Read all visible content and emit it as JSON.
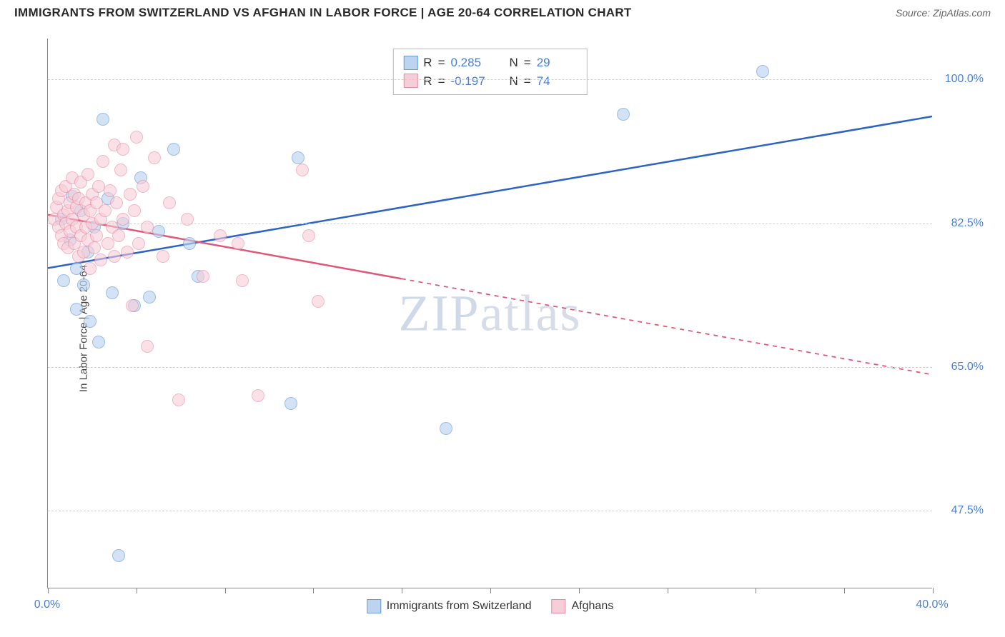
{
  "title": "IMMIGRANTS FROM SWITZERLAND VS AFGHAN IN LABOR FORCE | AGE 20-64 CORRELATION CHART",
  "source_prefix": "Source: ",
  "source_name": "ZipAtlas.com",
  "y_axis_title": "In Labor Force | Age 20-64",
  "watermark_a": "ZIP",
  "watermark_b": "atlas",
  "chart": {
    "type": "scatter-correlation",
    "background_color": "#ffffff",
    "grid_color": "#d0d0d0",
    "axis_color": "#888888",
    "xlim": [
      0,
      40
    ],
    "ylim": [
      38,
      105
    ],
    "x_ticks": [
      0,
      4,
      8,
      12,
      16,
      20,
      24,
      28,
      32,
      36,
      40
    ],
    "x_tick_labels": {
      "0": "0.0%",
      "40": "40.0%"
    },
    "y_gridlines": [
      47.5,
      65.0,
      82.5,
      100.0
    ],
    "y_tick_labels": [
      "47.5%",
      "65.0%",
      "82.5%",
      "100.0%"
    ],
    "point_radius": 9,
    "point_stroke_width": 1.4,
    "trend_line_width": 2.5
  },
  "series": [
    {
      "key": "swiss",
      "label": "Immigrants from Switzerland",
      "fill": "#bcd4ef",
      "stroke": "#6a9bd8",
      "fill_opacity": 0.65,
      "trend_color": "#2b63c9",
      "trend_dash_after_x": 40,
      "trend": {
        "x1": 0,
        "y1": 77.0,
        "x2": 40,
        "y2": 95.5
      },
      "R": "0.285",
      "N": "29",
      "points": [
        [
          0.6,
          83.0
        ],
        [
          0.7,
          75.5
        ],
        [
          1.0,
          80.5
        ],
        [
          1.1,
          85.8
        ],
        [
          1.3,
          77.0
        ],
        [
          1.3,
          72.0
        ],
        [
          1.5,
          84.0
        ],
        [
          1.6,
          75.0
        ],
        [
          1.8,
          79.0
        ],
        [
          1.9,
          70.5
        ],
        [
          2.1,
          82.0
        ],
        [
          2.3,
          68.0
        ],
        [
          2.5,
          95.2
        ],
        [
          2.7,
          85.5
        ],
        [
          2.9,
          74.0
        ],
        [
          3.2,
          42.0
        ],
        [
          3.4,
          82.5
        ],
        [
          3.9,
          72.5
        ],
        [
          4.2,
          88.0
        ],
        [
          4.6,
          73.5
        ],
        [
          5.0,
          81.5
        ],
        [
          5.7,
          91.5
        ],
        [
          6.4,
          80.0
        ],
        [
          6.8,
          76.0
        ],
        [
          11.0,
          60.5
        ],
        [
          11.3,
          90.5
        ],
        [
          18.0,
          57.5
        ],
        [
          26.0,
          95.8
        ],
        [
          32.3,
          101.0
        ]
      ]
    },
    {
      "key": "afghan",
      "label": "Afghans",
      "fill": "#f7cdd8",
      "stroke": "#e88aa3",
      "fill_opacity": 0.6,
      "trend_color": "#e15577",
      "trend_dash_after_x": 16,
      "trend": {
        "x1": 0,
        "y1": 83.5,
        "x2": 40,
        "y2": 64.0
      },
      "R": "-0.197",
      "N": "74",
      "points": [
        [
          0.3,
          83.0
        ],
        [
          0.4,
          84.5
        ],
        [
          0.5,
          82.0
        ],
        [
          0.5,
          85.5
        ],
        [
          0.6,
          81.0
        ],
        [
          0.6,
          86.5
        ],
        [
          0.7,
          83.5
        ],
        [
          0.7,
          80.0
        ],
        [
          0.8,
          87.0
        ],
        [
          0.8,
          82.5
        ],
        [
          0.9,
          84.0
        ],
        [
          0.9,
          79.5
        ],
        [
          1.0,
          85.0
        ],
        [
          1.0,
          81.5
        ],
        [
          1.1,
          88.0
        ],
        [
          1.1,
          83.0
        ],
        [
          1.2,
          80.0
        ],
        [
          1.2,
          86.0
        ],
        [
          1.3,
          82.0
        ],
        [
          1.3,
          84.5
        ],
        [
          1.4,
          78.5
        ],
        [
          1.4,
          85.5
        ],
        [
          1.5,
          81.0
        ],
        [
          1.5,
          87.5
        ],
        [
          1.6,
          83.5
        ],
        [
          1.6,
          79.0
        ],
        [
          1.7,
          85.0
        ],
        [
          1.7,
          82.0
        ],
        [
          1.8,
          88.5
        ],
        [
          1.8,
          80.5
        ],
        [
          1.9,
          84.0
        ],
        [
          1.9,
          77.0
        ],
        [
          2.0,
          86.0
        ],
        [
          2.0,
          82.5
        ],
        [
          2.1,
          79.5
        ],
        [
          2.2,
          85.0
        ],
        [
          2.2,
          81.0
        ],
        [
          2.3,
          87.0
        ],
        [
          2.4,
          83.0
        ],
        [
          2.4,
          78.0
        ],
        [
          2.5,
          90.0
        ],
        [
          2.6,
          84.0
        ],
        [
          2.7,
          80.0
        ],
        [
          2.8,
          86.5
        ],
        [
          2.9,
          82.0
        ],
        [
          3.0,
          92.0
        ],
        [
          3.0,
          78.5
        ],
        [
          3.1,
          85.0
        ],
        [
          3.2,
          81.0
        ],
        [
          3.3,
          89.0
        ],
        [
          3.4,
          83.0
        ],
        [
          3.4,
          91.5
        ],
        [
          3.6,
          79.0
        ],
        [
          3.7,
          86.0
        ],
        [
          3.8,
          72.5
        ],
        [
          3.9,
          84.0
        ],
        [
          4.0,
          93.0
        ],
        [
          4.1,
          80.0
        ],
        [
          4.3,
          87.0
        ],
        [
          4.5,
          82.0
        ],
        [
          4.8,
          90.5
        ],
        [
          4.5,
          67.5
        ],
        [
          5.2,
          78.5
        ],
        [
          5.5,
          85.0
        ],
        [
          5.9,
          61.0
        ],
        [
          6.3,
          83.0
        ],
        [
          7.0,
          76.0
        ],
        [
          7.8,
          81.0
        ],
        [
          8.6,
          80.0
        ],
        [
          8.8,
          75.5
        ],
        [
          9.5,
          61.5
        ],
        [
          11.5,
          89.0
        ],
        [
          11.8,
          81.0
        ],
        [
          12.2,
          73.0
        ]
      ]
    }
  ],
  "corr_legend_labels": {
    "R": "R",
    "eq": "=",
    "N": "N",
    "eq2": "="
  }
}
